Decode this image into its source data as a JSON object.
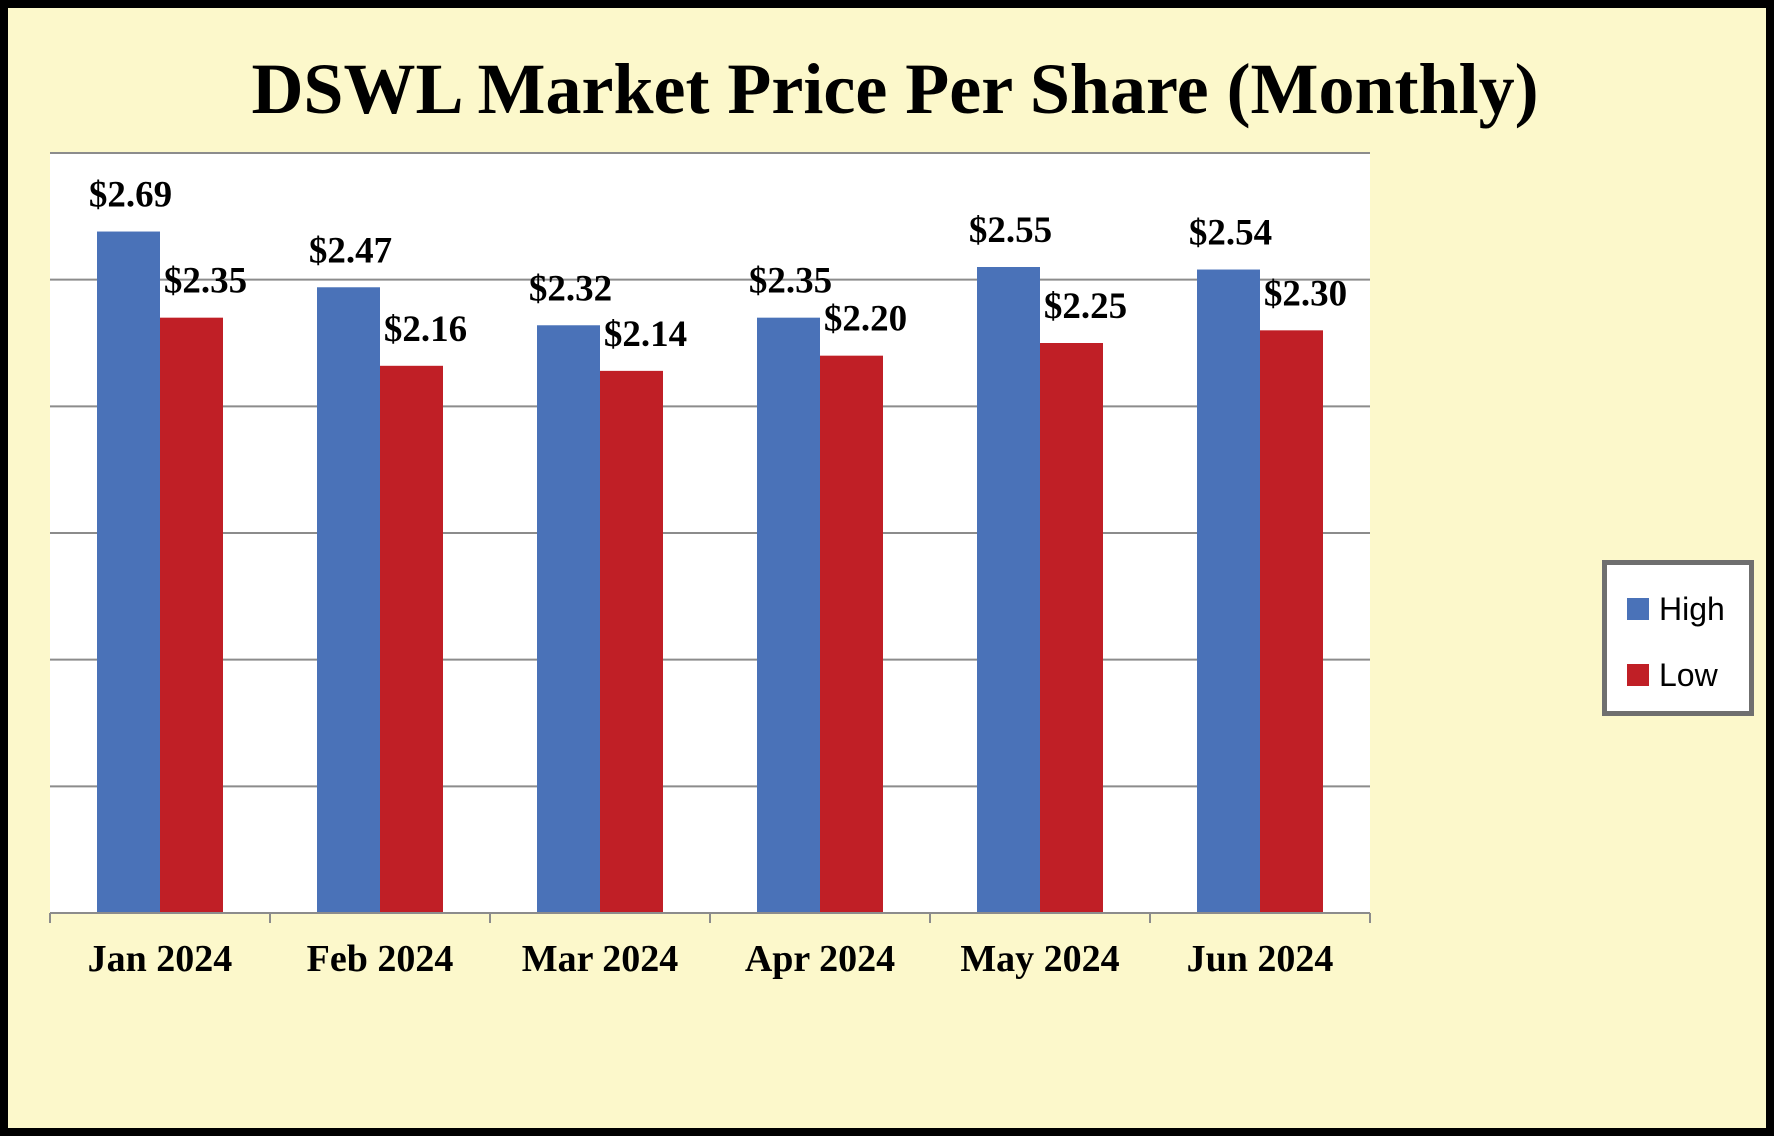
{
  "chart_data": {
    "type": "bar",
    "title": "DSWL Market Price Per Share (Monthly)",
    "categories": [
      "Jan 2024",
      "Feb 2024",
      "Mar 2024",
      "Apr 2024",
      "May 2024",
      "Jun 2024"
    ],
    "series": [
      {
        "name": "High",
        "color": "#4a72b8",
        "values": [
          2.69,
          2.47,
          2.32,
          2.35,
          2.55,
          2.54
        ],
        "labels": [
          "$2.69",
          "$2.47",
          "$2.32",
          "$2.35",
          "$2.55",
          "$2.54"
        ]
      },
      {
        "name": "Low",
        "color": "#c01f26",
        "values": [
          2.35,
          2.16,
          2.14,
          2.2,
          2.25,
          2.3
        ],
        "labels": [
          "$2.35",
          "$2.16",
          "$2.14",
          "$2.20",
          "$2.25",
          "$2.30"
        ]
      }
    ],
    "xlabel": "",
    "ylabel": "",
    "ylim": [
      0,
      3.0
    ],
    "ygrid_step": 0.5,
    "y_tick_labels_shown": false,
    "grid": true,
    "legend_position": "right"
  },
  "colors": {
    "background": "#fcf8cb",
    "plot_area": "#ffffff",
    "gridline": "#8c8c8c",
    "border": "#000000"
  }
}
